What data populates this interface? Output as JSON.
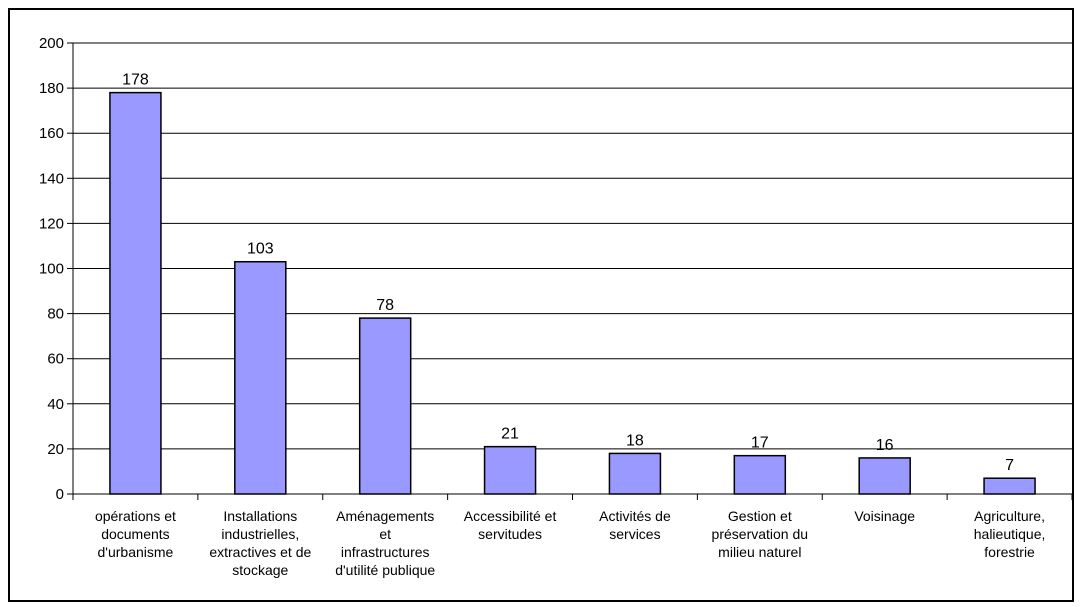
{
  "chart_data": {
    "type": "bar",
    "categories": [
      [
        "opérations et",
        "documents",
        "d'urbanisme"
      ],
      [
        "Installations",
        "industrielles,",
        "extractives et de",
        "stockage"
      ],
      [
        "Aménagements",
        "et",
        "infrastructures",
        "d'utilité publique"
      ],
      [
        "Accessibilité et",
        "servitudes"
      ],
      [
        "Activités de",
        "services"
      ],
      [
        "Gestion et",
        "préservation du",
        "milieu naturel"
      ],
      [
        "Voisinage"
      ],
      [
        "Agriculture,",
        "halieutique,",
        "forestrie"
      ]
    ],
    "values": [
      178,
      103,
      78,
      21,
      18,
      17,
      16,
      7
    ],
    "ylim": [
      0,
      200
    ],
    "yticks": [
      "0",
      "20",
      "40",
      "60",
      "80",
      "100",
      "120",
      "140",
      "160",
      "180",
      "200"
    ],
    "grid": true,
    "legend": "none",
    "title": "",
    "xlabel": "",
    "ylabel": "",
    "colors": {
      "bar_fill": "#9999ff",
      "bar_stroke": "#000000",
      "grid": "#000000"
    }
  }
}
